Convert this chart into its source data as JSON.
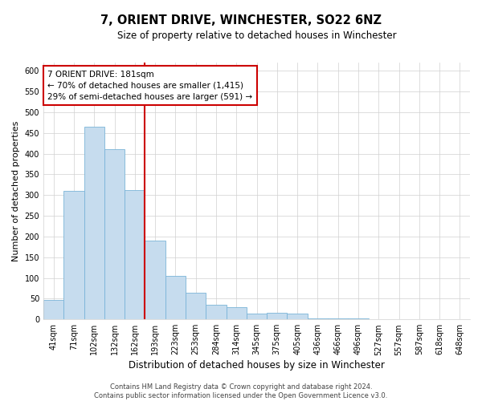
{
  "title": "7, ORIENT DRIVE, WINCHESTER, SO22 6NZ",
  "subtitle": "Size of property relative to detached houses in Winchester",
  "xlabel": "Distribution of detached houses by size in Winchester",
  "ylabel": "Number of detached properties",
  "bin_labels": [
    "41sqm",
    "71sqm",
    "102sqm",
    "132sqm",
    "162sqm",
    "193sqm",
    "223sqm",
    "253sqm",
    "284sqm",
    "314sqm",
    "345sqm",
    "375sqm",
    "405sqm",
    "436sqm",
    "466sqm",
    "496sqm",
    "527sqm",
    "557sqm",
    "587sqm",
    "618sqm",
    "648sqm"
  ],
  "bar_values": [
    46,
    311,
    465,
    410,
    313,
    190,
    105,
    65,
    35,
    30,
    13,
    15,
    13,
    2,
    3,
    2,
    1,
    0,
    0,
    0,
    1
  ],
  "bar_color": "#c6dcee",
  "bar_edgecolor": "#7ab4d8",
  "vline_x": 4.5,
  "vline_color": "#cc0000",
  "annotation_text": "7 ORIENT DRIVE: 181sqm\n← 70% of detached houses are smaller (1,415)\n29% of semi-detached houses are larger (591) →",
  "annotation_box_color": "#ffffff",
  "annotation_box_edgecolor": "#cc0000",
  "ylim": [
    0,
    620
  ],
  "yticks": [
    0,
    50,
    100,
    150,
    200,
    250,
    300,
    350,
    400,
    450,
    500,
    550,
    600
  ],
  "footer1": "Contains HM Land Registry data © Crown copyright and database right 2024.",
  "footer2": "Contains public sector information licensed under the Open Government Licence v3.0.",
  "background_color": "#ffffff",
  "grid_color": "#d0d0d0",
  "title_fontsize": 10.5,
  "subtitle_fontsize": 8.5,
  "ylabel_fontsize": 8,
  "xlabel_fontsize": 8.5,
  "tick_fontsize": 7,
  "footer_fontsize": 6,
  "annot_fontsize": 7.5
}
